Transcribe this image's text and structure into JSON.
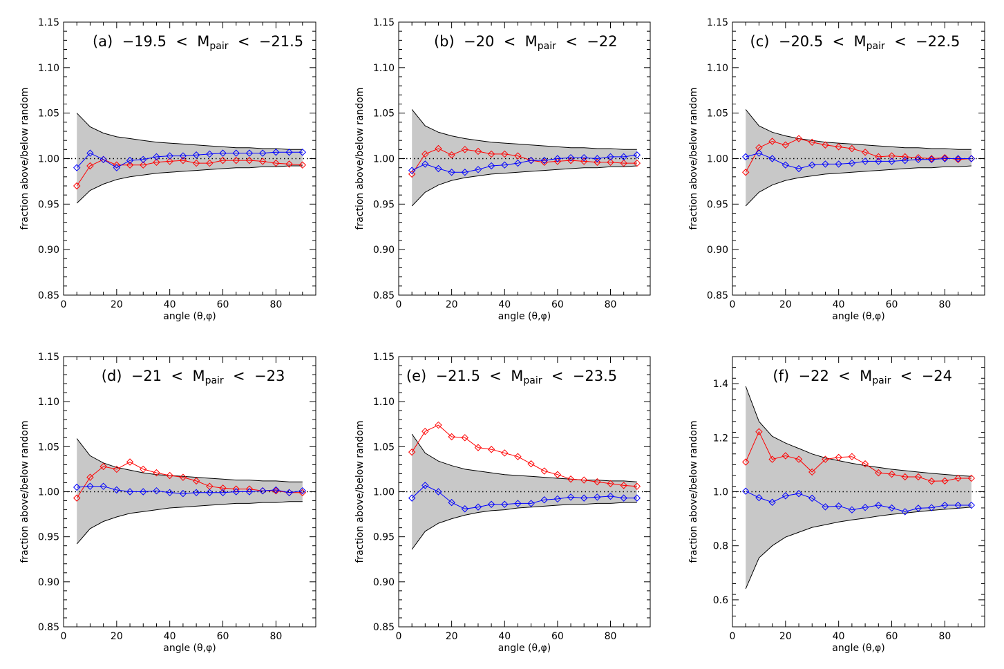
{
  "colors": {
    "band_fill": "#c8c8c8",
    "band_edge": "#000000",
    "series_red": "#ff0000",
    "series_blue": "#0000ff",
    "reference_line": "#000000"
  },
  "chart_data": [
    {
      "type": "line",
      "title": {
        "label": "(a)",
        "lower": "−19.5",
        "mag": "M",
        "sub": "pair",
        "upper": "−21.5"
      },
      "xlabel": "angle (θ,φ)",
      "ylabel": "fraction above/below random",
      "xlim": [
        0,
        95
      ],
      "ylim": [
        0.85,
        1.15
      ],
      "xticks": [
        "0",
        "20",
        "40",
        "60",
        "80"
      ],
      "yticks": [
        "0.85",
        "0.90",
        "0.95",
        "1.00",
        "1.05",
        "1.10",
        "1.15"
      ],
      "x": [
        5,
        10,
        15,
        20,
        25,
        30,
        35,
        40,
        45,
        50,
        55,
        60,
        65,
        70,
        75,
        80,
        85,
        90
      ],
      "band_upper": [
        1.05,
        1.035,
        1.028,
        1.024,
        1.022,
        1.02,
        1.018,
        1.017,
        1.016,
        1.015,
        1.014,
        1.013,
        1.012,
        1.012,
        1.011,
        1.011,
        1.01,
        1.01
      ],
      "band_lower": [
        0.951,
        0.965,
        0.972,
        0.977,
        0.98,
        0.982,
        0.984,
        0.985,
        0.986,
        0.987,
        0.988,
        0.989,
        0.99,
        0.99,
        0.991,
        0.991,
        0.992,
        0.992
      ],
      "series": [
        {
          "color": "red",
          "values": [
            0.97,
            0.992,
            0.999,
            0.993,
            0.993,
            0.993,
            0.996,
            0.997,
            0.998,
            0.995,
            0.995,
            0.998,
            0.998,
            0.998,
            0.997,
            0.995,
            0.994,
            0.993
          ]
        },
        {
          "color": "blue",
          "values": [
            0.99,
            1.006,
            0.999,
            0.99,
            0.998,
            0.999,
            1.002,
            1.003,
            1.003,
            1.004,
            1.005,
            1.006,
            1.006,
            1.006,
            1.006,
            1.007,
            1.007,
            1.007
          ]
        }
      ],
      "reference_y": 1.0
    },
    {
      "type": "line",
      "title": {
        "label": "(b)",
        "lower": "−20",
        "mag": "M",
        "sub": "pair",
        "upper": "−22"
      },
      "xlabel": "angle (θ,φ)",
      "ylabel": "fraction above/below random",
      "xlim": [
        0,
        95
      ],
      "ylim": [
        0.85,
        1.15
      ],
      "xticks": [
        "0",
        "20",
        "40",
        "60",
        "80"
      ],
      "yticks": [
        "0.85",
        "0.90",
        "0.95",
        "1.00",
        "1.05",
        "1.10",
        "1.15"
      ],
      "x": [
        5,
        10,
        15,
        20,
        25,
        30,
        35,
        40,
        45,
        50,
        55,
        60,
        65,
        70,
        75,
        80,
        85,
        90
      ],
      "band_upper": [
        1.054,
        1.036,
        1.029,
        1.025,
        1.022,
        1.02,
        1.018,
        1.017,
        1.016,
        1.015,
        1.014,
        1.013,
        1.012,
        1.012,
        1.011,
        1.011,
        1.01,
        1.01
      ],
      "band_lower": [
        0.948,
        0.963,
        0.971,
        0.976,
        0.979,
        0.981,
        0.983,
        0.984,
        0.985,
        0.986,
        0.987,
        0.988,
        0.989,
        0.99,
        0.99,
        0.991,
        0.991,
        0.992
      ],
      "series": [
        {
          "color": "red",
          "values": [
            0.983,
            1.005,
            1.011,
            1.004,
            1.01,
            1.008,
            1.005,
            1.005,
            1.003,
            0.998,
            0.996,
            0.997,
            0.998,
            0.997,
            0.996,
            0.996,
            0.995,
            0.995
          ]
        },
        {
          "color": "blue",
          "values": [
            0.987,
            0.994,
            0.989,
            0.985,
            0.985,
            0.988,
            0.992,
            0.993,
            0.995,
            0.998,
            0.998,
            1.0,
            1.001,
            1.001,
            1.0,
            1.002,
            1.002,
            1.004
          ]
        }
      ],
      "reference_y": 1.0
    },
    {
      "type": "line",
      "title": {
        "label": "(c)",
        "lower": "−20.5",
        "mag": "M",
        "sub": "pair",
        "upper": "−22.5"
      },
      "xlabel": "angle (θ,φ)",
      "ylabel": "fraction above/below random",
      "xlim": [
        0,
        95
      ],
      "ylim": [
        0.85,
        1.15
      ],
      "xticks": [
        "0",
        "20",
        "40",
        "60",
        "80"
      ],
      "yticks": [
        "0.85",
        "0.90",
        "0.95",
        "1.00",
        "1.05",
        "1.10",
        "1.15"
      ],
      "x": [
        5,
        10,
        15,
        20,
        25,
        30,
        35,
        40,
        45,
        50,
        55,
        60,
        65,
        70,
        75,
        80,
        85,
        90
      ],
      "band_upper": [
        1.054,
        1.036,
        1.029,
        1.025,
        1.022,
        1.02,
        1.018,
        1.017,
        1.016,
        1.015,
        1.014,
        1.013,
        1.012,
        1.012,
        1.011,
        1.011,
        1.01,
        1.01
      ],
      "band_lower": [
        0.948,
        0.963,
        0.971,
        0.976,
        0.979,
        0.981,
        0.983,
        0.984,
        0.985,
        0.986,
        0.987,
        0.988,
        0.989,
        0.99,
        0.99,
        0.991,
        0.991,
        0.992
      ],
      "series": [
        {
          "color": "red",
          "values": [
            0.985,
            1.012,
            1.019,
            1.015,
            1.022,
            1.018,
            1.015,
            1.013,
            1.011,
            1.007,
            1.002,
            1.003,
            1.002,
            1.001,
            1.0,
            1.001,
            0.999,
            1.0
          ]
        },
        {
          "color": "blue",
          "values": [
            1.002,
            1.006,
            1.0,
            0.993,
            0.989,
            0.993,
            0.994,
            0.994,
            0.995,
            0.997,
            0.997,
            0.997,
            0.998,
            0.999,
            0.999,
            1.0,
            1.0,
            1.0
          ]
        }
      ],
      "reference_y": 1.0
    },
    {
      "type": "line",
      "title": {
        "label": "(d)",
        "lower": "−21",
        "mag": "M",
        "sub": "pair",
        "upper": "−23"
      },
      "xlabel": "angle (θ,φ)",
      "ylabel": "fraction above/below random",
      "xlim": [
        0,
        95
      ],
      "ylim": [
        0.85,
        1.15
      ],
      "xticks": [
        "0",
        "20",
        "40",
        "60",
        "80"
      ],
      "yticks": [
        "0.85",
        "0.90",
        "0.95",
        "1.00",
        "1.05",
        "1.10",
        "1.15"
      ],
      "x": [
        5,
        10,
        15,
        20,
        25,
        30,
        35,
        40,
        45,
        50,
        55,
        60,
        65,
        70,
        75,
        80,
        85,
        90
      ],
      "band_upper": [
        1.059,
        1.04,
        1.032,
        1.027,
        1.024,
        1.021,
        1.019,
        1.018,
        1.017,
        1.016,
        1.015,
        1.014,
        1.013,
        1.013,
        1.012,
        1.012,
        1.011,
        1.011
      ],
      "band_lower": [
        0.942,
        0.959,
        0.967,
        0.972,
        0.976,
        0.978,
        0.98,
        0.982,
        0.983,
        0.984,
        0.985,
        0.986,
        0.987,
        0.987,
        0.988,
        0.988,
        0.989,
        0.989
      ],
      "series": [
        {
          "color": "red",
          "values": [
            0.993,
            1.016,
            1.028,
            1.025,
            1.033,
            1.025,
            1.021,
            1.018,
            1.016,
            1.012,
            1.006,
            1.004,
            1.003,
            1.003,
            1.001,
            1.001,
            0.999,
            0.999
          ]
        },
        {
          "color": "blue",
          "values": [
            1.005,
            1.006,
            1.006,
            1.002,
            1.0,
            1.0,
            1.001,
            0.999,
            0.998,
            0.999,
            0.999,
            0.999,
            1.0,
            1.0,
            1.001,
            1.002,
            0.999,
            1.001
          ]
        }
      ],
      "reference_y": 1.0
    },
    {
      "type": "line",
      "title": {
        "label": "(e)",
        "lower": "−21.5",
        "mag": "M",
        "sub": "pair",
        "upper": "−23.5"
      },
      "xlabel": "angle (θ,φ)",
      "ylabel": "fraction above/below random",
      "xlim": [
        0,
        95
      ],
      "ylim": [
        0.85,
        1.15
      ],
      "xticks": [
        "0",
        "20",
        "40",
        "60",
        "80"
      ],
      "yticks": [
        "0.85",
        "0.90",
        "0.95",
        "1.00",
        "1.05",
        "1.10",
        "1.15"
      ],
      "x": [
        5,
        10,
        15,
        20,
        25,
        30,
        35,
        40,
        45,
        50,
        55,
        60,
        65,
        70,
        75,
        80,
        85,
        90
      ],
      "band_upper": [
        1.064,
        1.043,
        1.034,
        1.029,
        1.025,
        1.023,
        1.021,
        1.019,
        1.018,
        1.017,
        1.016,
        1.015,
        1.014,
        1.013,
        1.013,
        1.012,
        1.012,
        1.011
      ],
      "band_lower": [
        0.936,
        0.956,
        0.965,
        0.97,
        0.974,
        0.977,
        0.979,
        0.98,
        0.982,
        0.983,
        0.984,
        0.985,
        0.986,
        0.986,
        0.987,
        0.987,
        0.988,
        0.988
      ],
      "series": [
        {
          "color": "red",
          "values": [
            1.044,
            1.067,
            1.074,
            1.061,
            1.06,
            1.049,
            1.047,
            1.043,
            1.039,
            1.031,
            1.023,
            1.019,
            1.014,
            1.013,
            1.011,
            1.009,
            1.007,
            1.006
          ]
        },
        {
          "color": "blue",
          "values": [
            0.993,
            1.007,
            1.0,
            0.988,
            0.981,
            0.983,
            0.986,
            0.986,
            0.987,
            0.987,
            0.991,
            0.992,
            0.994,
            0.993,
            0.994,
            0.995,
            0.993,
            0.993
          ]
        }
      ],
      "reference_y": 1.0
    },
    {
      "type": "line",
      "title": {
        "label": "(f)",
        "lower": "−22",
        "mag": "M",
        "sub": "pair",
        "upper": "−24"
      },
      "xlabel": "angle (θ,φ)",
      "ylabel": "fraction above/below random",
      "xlim": [
        0,
        95
      ],
      "ylim": [
        0.5,
        1.5
      ],
      "xticks": [
        "0",
        "20",
        "40",
        "60",
        "80"
      ],
      "yticks": [
        "0.6",
        "0.8",
        "1.0",
        "1.2",
        "1.4"
      ],
      "x": [
        5,
        10,
        15,
        20,
        25,
        30,
        35,
        40,
        45,
        50,
        55,
        60,
        65,
        70,
        75,
        80,
        85,
        90
      ],
      "band_upper": [
        1.39,
        1.26,
        1.205,
        1.18,
        1.16,
        1.14,
        1.125,
        1.115,
        1.105,
        1.097,
        1.09,
        1.083,
        1.078,
        1.073,
        1.068,
        1.064,
        1.06,
        1.057
      ],
      "band_lower": [
        0.641,
        0.755,
        0.8,
        0.832,
        0.85,
        0.868,
        0.878,
        0.888,
        0.896,
        0.902,
        0.91,
        0.916,
        0.921,
        0.926,
        0.931,
        0.935,
        0.939,
        0.943
      ],
      "series": [
        {
          "color": "red",
          "values": [
            1.11,
            1.222,
            1.12,
            1.133,
            1.12,
            1.073,
            1.12,
            1.127,
            1.13,
            1.103,
            1.07,
            1.065,
            1.055,
            1.055,
            1.039,
            1.04,
            1.05,
            1.05
          ]
        },
        {
          "color": "blue",
          "values": [
            1.002,
            0.978,
            0.961,
            0.985,
            0.993,
            0.976,
            0.944,
            0.947,
            0.933,
            0.942,
            0.95,
            0.94,
            0.926,
            0.939,
            0.941,
            0.95,
            0.95,
            0.95
          ]
        }
      ],
      "reference_y": 1.0
    }
  ]
}
